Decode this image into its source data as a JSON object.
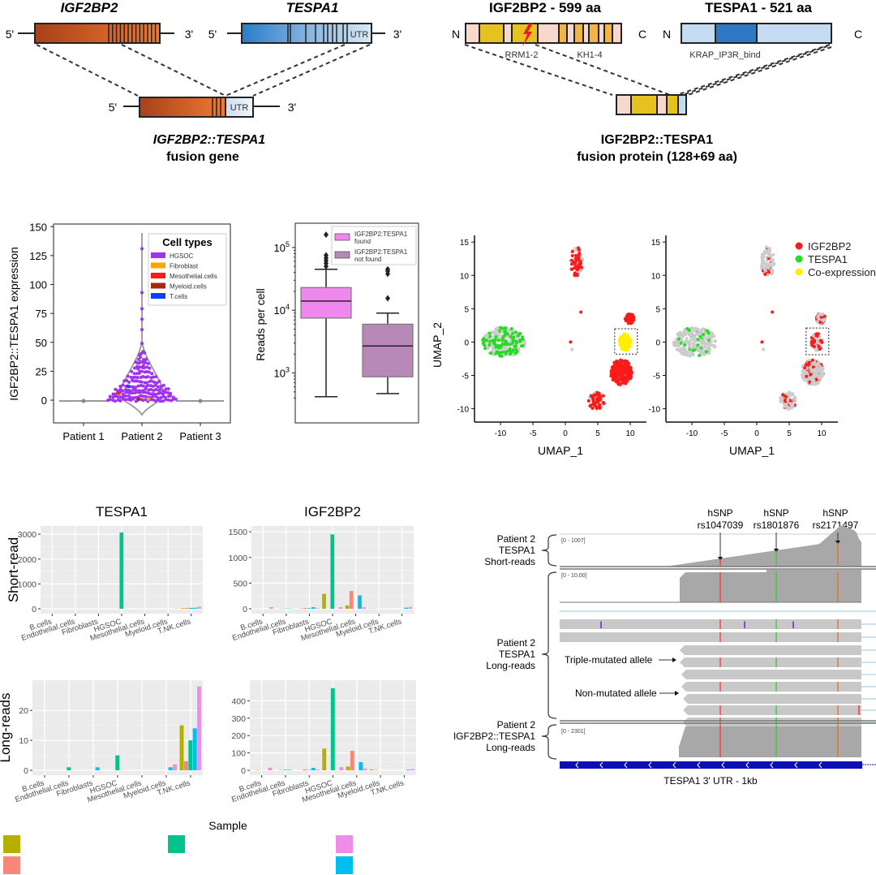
{
  "gene_diagram": {
    "gene1": "IGF2BP2",
    "gene2": "TESPA1",
    "five_prime": "5'",
    "three_prime": "3'",
    "utr": "UTR",
    "fusion_name": "IGF2BP2::TESPA1",
    "fusion_label": "fusion gene",
    "colors": {
      "igf2bp2": "#c4531a",
      "tespa1": "#3a86c8",
      "utr": "#dbe8f2"
    }
  },
  "protein_diagram": {
    "protein1": "IGF2BP2 - 599 aa",
    "protein2": "TESPA1 - 521 aa",
    "n_term": "N",
    "c_term": "C",
    "domain1": "RRM1-2",
    "domain2": "KH1-4",
    "domain3": "KRAP_IP3R_bind",
    "fusion_name": "IGF2BP2::TESPA1",
    "fusion_label": "fusion protein (128+69 aa)",
    "colors": {
      "light": "#f8d8cc",
      "rrm": "#e6c21f",
      "kh": "#f2b444",
      "tespa_light": "#c3dcf1",
      "tespa_dark": "#2f79c4"
    }
  },
  "chart_data": [
    {
      "id": "violin",
      "type": "scatter",
      "title": "",
      "xlabel": "",
      "ylabel": "IGF2BP2::TESPA1 expression",
      "categories": [
        "Patient 1",
        "Patient 2",
        "Patient 3"
      ],
      "yticks": [
        0,
        25,
        50,
        75,
        100,
        125,
        150
      ],
      "ylim": [
        -15,
        150
      ],
      "legend": {
        "title": "Cell types",
        "position": "top-right",
        "items": [
          {
            "label": "HGSOC",
            "color": "#a033ee"
          },
          {
            "label": "Fibroblast",
            "color": "#ffa500"
          },
          {
            "label": "Mesothelial.cells",
            "color": "#ff1a1a"
          },
          {
            "label": "Myeloid.cells",
            "color": "#a52a0a"
          },
          {
            "label": "T.cells",
            "color": "#1040ff"
          }
        ]
      },
      "patient2_outliers": [
        131,
        93,
        79,
        70,
        61,
        49,
        42,
        40,
        37,
        35,
        33,
        32,
        30,
        28,
        27,
        25
      ],
      "patient2_special_points": [
        {
          "type": "T.cells",
          "value": 12
        },
        {
          "type": "Mesothelial.cells",
          "value": 6
        },
        {
          "type": "Myeloid.cells",
          "value": 1
        },
        {
          "type": "Fibroblast",
          "value": 1
        }
      ]
    },
    {
      "id": "boxplot",
      "type": "bar",
      "ylabel": "Reads per cell",
      "yscale": "log",
      "yticks": [
        "10^3",
        "10^4",
        "10^5"
      ],
      "ylim": [
        300,
        200000
      ],
      "legend": {
        "position": "top-right",
        "items": [
          {
            "label_line1": "IGF2BP2:TESPA1",
            "label_line2": "found",
            "color": "#ee88ee"
          },
          {
            "label_line1": "IGF2BP2:TESPA1",
            "label_line2": "not found",
            "color": "#b888b8"
          }
        ]
      },
      "series": [
        {
          "name": "IGF2BP2:TESPA1 found",
          "min": 420,
          "q1": 7500,
          "median": 14000,
          "q3": 23000,
          "max": 45000,
          "outliers": [
            160000,
            75000,
            68000,
            62000,
            56000,
            50000
          ]
        },
        {
          "name": "IGF2BP2:TESPA1 not found",
          "min": 470,
          "q1": 870,
          "median": 2700,
          "q3": 6000,
          "max": 9000,
          "outliers": [
            45000,
            42000,
            38000,
            15500
          ]
        }
      ]
    },
    {
      "id": "umap-left",
      "type": "scatter",
      "xlabel": "UMAP_1",
      "ylabel": "UMAP_2",
      "xticks": [
        -10,
        -5,
        0,
        5,
        10
      ],
      "yticks": [
        -10,
        -5,
        0,
        5,
        10,
        15
      ],
      "xlim": [
        -14,
        12.5
      ],
      "ylim": [
        -12,
        16
      ],
      "clusters": [
        {
          "cx": -9.5,
          "cy": 0,
          "rx": 3.3,
          "ry": 2.2,
          "n_gray": 160,
          "n_colored": 90,
          "color": "green"
        },
        {
          "cx": 1.7,
          "cy": 12,
          "rx": 1.0,
          "ry": 2.3,
          "n_gray": 40,
          "n_colored": 40,
          "color": "red"
        },
        {
          "cx": 8.6,
          "cy": -4.5,
          "rx": 1.7,
          "ry": 1.9,
          "n_gray": 20,
          "n_colored": 220,
          "color": "red"
        },
        {
          "cx": 4.8,
          "cy": -8.8,
          "rx": 1.3,
          "ry": 1.3,
          "n_gray": 40,
          "n_colored": 40,
          "color": "red"
        },
        {
          "cx": 9.9,
          "cy": 3.5,
          "rx": 0.7,
          "ry": 0.8,
          "n_gray": 5,
          "n_colored": 60,
          "color": "red"
        },
        {
          "cx": 9.2,
          "cy": 0.0,
          "rx": 0.9,
          "ry": 1.3,
          "n_gray": 5,
          "n_colored": 90,
          "color": "yellow"
        }
      ],
      "highlight_box": {
        "x": [
          7.6,
          11.1
        ],
        "y": [
          -1.8,
          2.0
        ]
      }
    },
    {
      "id": "umap-right",
      "type": "scatter",
      "xlabel": "UMAP_1",
      "xticks": [
        -10,
        -5,
        0,
        5,
        10
      ],
      "yticks": [
        -10,
        -5,
        0,
        5,
        10,
        15
      ],
      "xlim": [
        -14,
        12.5
      ],
      "ylim": [
        -12,
        16
      ],
      "legend": {
        "position": "top-right",
        "items": [
          {
            "label": "IGF2BP2",
            "color": "#ff1a1a"
          },
          {
            "label": "TESPA1",
            "color": "#22dd22"
          },
          {
            "label": "Co-expression",
            "color": "#ffee00"
          }
        ]
      },
      "highlight_box": {
        "x": [
          7.6,
          11.1
        ],
        "y": [
          -1.9,
          2.1
        ]
      }
    },
    {
      "id": "sr-tespa1",
      "type": "bar",
      "title": "TESPA1",
      "row_label": "Short-read",
      "categories": [
        "B.cells",
        "Endothelial.cells",
        "Fibroblasts",
        "HGSOC",
        "Mesothelial.cells",
        "Myeloid.cells",
        "T.NK.cells"
      ],
      "ylim": [
        0,
        3200
      ],
      "yticks": [
        0,
        1000,
        2000,
        3000
      ],
      "series": [
        {
          "name": "s1",
          "color": "#b5b000",
          "values": [
            0,
            0,
            0,
            0,
            0,
            0,
            25
          ]
        },
        {
          "name": "s2",
          "color": "#f8877a",
          "values": [
            0,
            0,
            0,
            0,
            0,
            0,
            30
          ]
        },
        {
          "name": "s3",
          "color": "#00c48c",
          "values": [
            0,
            0,
            0,
            3070,
            0,
            0,
            35
          ]
        },
        {
          "name": "s4",
          "color": "#00bff0",
          "values": [
            0,
            0,
            0,
            0,
            0,
            0,
            40
          ]
        },
        {
          "name": "s5",
          "color": "#ee8cea",
          "values": [
            0,
            0,
            0,
            0,
            0,
            8,
            80
          ]
        }
      ]
    },
    {
      "id": "sr-igf2bp2",
      "type": "bar",
      "title": "IGF2BP2",
      "categories": [
        "B.cells",
        "Endothelial.cells",
        "Fibroblasts",
        "HGSOC",
        "Mesothelial.cells",
        "Myeloid.cells",
        "T.NK.cells"
      ],
      "ylim": [
        0,
        1550
      ],
      "yticks": [
        0,
        500,
        1000,
        1500
      ],
      "series": [
        {
          "name": "s1",
          "color": "#b5b000",
          "values": [
            0,
            0,
            5,
            290,
            65,
            5,
            0
          ]
        },
        {
          "name": "s2",
          "color": "#f8877a",
          "values": [
            0,
            5,
            15,
            0,
            345,
            3,
            0
          ]
        },
        {
          "name": "s3",
          "color": "#00c48c",
          "values": [
            0,
            5,
            10,
            1450,
            0,
            0,
            0
          ]
        },
        {
          "name": "s4",
          "color": "#00bff0",
          "values": [
            0,
            5,
            30,
            0,
            260,
            0,
            20
          ]
        },
        {
          "name": "s5",
          "color": "#ee8cea",
          "values": [
            30,
            0,
            10,
            30,
            30,
            0,
            35
          ]
        }
      ]
    },
    {
      "id": "lr-tespa1",
      "type": "bar",
      "row_label": "Long-reads",
      "categories": [
        "B.cells",
        "Endothelial.cells",
        "Fibroblasts",
        "HGSOC",
        "Mesothelial.cells",
        "Myeloid.cells",
        "T.NK.cells"
      ],
      "ylim": [
        0,
        29
      ],
      "yticks": [
        0,
        10,
        20
      ],
      "series": [
        {
          "name": "s1",
          "color": "#b5b000",
          "values": [
            0,
            0,
            0,
            0,
            0,
            0,
            15
          ]
        },
        {
          "name": "s2",
          "color": "#f8877a",
          "values": [
            0,
            0,
            0,
            0,
            0,
            0,
            3
          ]
        },
        {
          "name": "s3",
          "color": "#00c48c",
          "values": [
            0,
            1,
            0,
            5,
            0,
            0,
            10
          ]
        },
        {
          "name": "s4",
          "color": "#00bff0",
          "values": [
            0,
            0,
            1,
            0,
            0,
            1,
            14
          ]
        },
        {
          "name": "s5",
          "color": "#ee8cea",
          "values": [
            0,
            0,
            0,
            0,
            0,
            2,
            28
          ]
        }
      ]
    },
    {
      "id": "lr-igf2bp2",
      "type": "bar",
      "categories": [
        "B.cells",
        "Endothelial.cells",
        "Fibroblasts",
        "HGSOC",
        "Mesothelial.cells",
        "Myeloid.cells",
        "T.NK.cells"
      ],
      "ylim": [
        0,
        500
      ],
      "yticks": [
        0,
        100,
        200,
        300,
        400
      ],
      "series": [
        {
          "name": "s1",
          "color": "#b5b000",
          "values": [
            0,
            0,
            0,
            125,
            22,
            5,
            0
          ]
        },
        {
          "name": "s2",
          "color": "#f8877a",
          "values": [
            2,
            2,
            5,
            0,
            112,
            2,
            0
          ]
        },
        {
          "name": "s3",
          "color": "#00c48c",
          "values": [
            0,
            3,
            2,
            473,
            0,
            0,
            0
          ]
        },
        {
          "name": "s4",
          "color": "#00bff0",
          "values": [
            0,
            3,
            14,
            0,
            47,
            0,
            4
          ]
        },
        {
          "name": "s5",
          "color": "#ee8cea",
          "values": [
            15,
            0,
            5,
            18,
            10,
            0,
            7
          ]
        }
      ]
    }
  ],
  "bar_panel": {
    "xlabel": "Sample",
    "legend_colors": [
      "#b5b000",
      "#f8877a",
      "#00c48c",
      "#ee8cea",
      "#00bff0"
    ]
  },
  "igv": {
    "snps": [
      {
        "label": "hSNP",
        "id": "rs1047039",
        "color": "#ff3333"
      },
      {
        "label": "hSNP",
        "id": "rs1801876",
        "color": "#33cc33"
      },
      {
        "label": "hSNP",
        "id": "rs2171497",
        "color": "#e07020"
      }
    ],
    "tracks": [
      {
        "line1": "Patient 2",
        "line2": "TESPA1",
        "line3": "Short-reads",
        "range": "[0 - 1007]"
      },
      {
        "line1": "Patient 2",
        "line2": "TESPA1",
        "line3": "Long-reads",
        "range": "[0 - 10,00]"
      },
      {
        "line1": "Patient 2",
        "line2": "IGF2BP2::TESPA1",
        "line3": "Long-reads",
        "range": "[0 - 2301]"
      }
    ],
    "annot_triple": "Triple-mutated allele",
    "annot_non": "Non-mutated allele",
    "gene_label": "TESPA1 3' UTR - 1kb"
  }
}
